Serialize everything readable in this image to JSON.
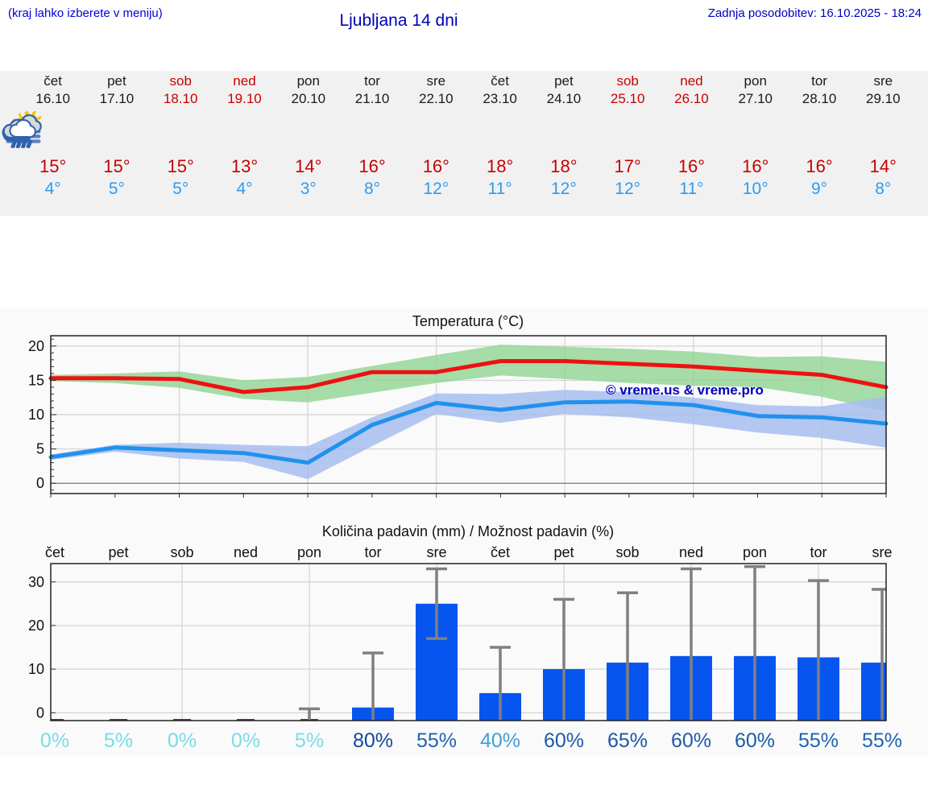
{
  "header": {
    "menu_hint": "(kraj lahko izberete v meniju)",
    "title": "Ljubljana 14 dni",
    "last_update": "Zadnja posodobitev: 16.10.2025 - 18:24"
  },
  "colors": {
    "link_blue": "#0000e0",
    "title_blue": "#0000bb",
    "weekend_red": "#c80000",
    "high_temp_red": "#c80000",
    "low_temp_blue": "#2d9bf0",
    "strip_bg": "#f1f1f1",
    "plot_bg": "#fafafa",
    "grid": "#d8d8d8",
    "bar_blue": "#0655ef",
    "error_gray": "#808080",
    "watermark_blue": "#0000bd"
  },
  "days": [
    {
      "name": "čet",
      "date": "16.10",
      "weekend": false,
      "icon": "sun-fog",
      "high": "15°",
      "low": "4°"
    },
    {
      "name": "pet",
      "date": "17.10",
      "weekend": false,
      "icon": "sun-fog",
      "high": "15°",
      "low": "5°"
    },
    {
      "name": "sob",
      "date": "18.10",
      "weekend": true,
      "icon": "partly-cloudy",
      "high": "15°",
      "low": "5°"
    },
    {
      "name": "ned",
      "date": "19.10",
      "weekend": true,
      "icon": "partly-cloudy",
      "high": "13°",
      "low": "4°"
    },
    {
      "name": "pon",
      "date": "20.10",
      "weekend": false,
      "icon": "partly-cloudy",
      "high": "14°",
      "low": "3°"
    },
    {
      "name": "tor",
      "date": "21.10",
      "weekend": false,
      "icon": "sun-cloud-light-rain",
      "high": "16°",
      "low": "8°"
    },
    {
      "name": "sre",
      "date": "22.10",
      "weekend": false,
      "icon": "sun-cloud-rain",
      "high": "16°",
      "low": "12°"
    },
    {
      "name": "čet",
      "date": "23.10",
      "weekend": false,
      "icon": "sun-cloud-rain",
      "high": "18°",
      "low": "11°"
    },
    {
      "name": "pet",
      "date": "24.10",
      "weekend": false,
      "icon": "cloud-rain",
      "high": "18°",
      "low": "12°"
    },
    {
      "name": "sob",
      "date": "25.10",
      "weekend": true,
      "icon": "cloud-rain",
      "high": "17°",
      "low": "12°"
    },
    {
      "name": "ned",
      "date": "26.10",
      "weekend": true,
      "icon": "cloud-rain",
      "high": "16°",
      "low": "11°"
    },
    {
      "name": "pon",
      "date": "27.10",
      "weekend": false,
      "icon": "cloud-rain",
      "high": "16°",
      "low": "10°"
    },
    {
      "name": "tor",
      "date": "28.10",
      "weekend": false,
      "icon": "cloud-rain",
      "high": "16°",
      "low": "9°"
    },
    {
      "name": "sre",
      "date": "29.10",
      "weekend": false,
      "icon": "cloud-rain",
      "high": "14°",
      "low": "8°"
    }
  ],
  "chart_data": [
    {
      "type": "line",
      "title": "Temperatura (°C)",
      "x": [
        "čet 16.10",
        "pet 17.10",
        "sob 18.10",
        "ned 19.10",
        "pon 20.10",
        "tor 21.10",
        "sre 22.10",
        "čet 23.10",
        "pet 24.10",
        "sob 25.10",
        "ned 26.10",
        "pon 27.10",
        "tor 28.10",
        "sre 29.10"
      ],
      "ylabel": "°C",
      "ylim": [
        -1.5,
        21.5
      ],
      "yticks": [
        0,
        5,
        10,
        15,
        20
      ],
      "grid": true,
      "watermark": "© vreme.us & vreme.pro",
      "series": [
        {
          "name": "max-temperature",
          "color": "#ee1111",
          "values": [
            15.3,
            15.3,
            15.2,
            13.3,
            14.0,
            16.2,
            16.2,
            17.8,
            17.8,
            17.4,
            17.0,
            16.4,
            15.8,
            14.0
          ]
        },
        {
          "name": "min-temperature",
          "color": "#2191ee",
          "values": [
            3.8,
            5.2,
            4.8,
            4.4,
            3.0,
            8.5,
            11.7,
            10.7,
            11.8,
            11.9,
            11.4,
            9.8,
            9.6,
            8.7
          ]
        }
      ],
      "bands": [
        {
          "name": "max-range",
          "color": "#90d494",
          "opacity": 0.8,
          "upper": [
            15.8,
            16.0,
            16.3,
            15.0,
            15.5,
            17.1,
            18.7,
            20.2,
            19.9,
            19.6,
            19.2,
            18.4,
            18.5,
            17.7
          ],
          "lower": [
            14.9,
            14.6,
            13.9,
            12.3,
            11.8,
            13.2,
            14.6,
            15.7,
            15.2,
            14.6,
            14.2,
            14.0,
            12.6,
            10.4
          ]
        },
        {
          "name": "min-range",
          "color": "#a6bdee",
          "opacity": 0.85,
          "upper": [
            4.2,
            5.6,
            5.9,
            5.6,
            5.4,
            9.6,
            13.1,
            13.0,
            13.6,
            13.3,
            12.5,
            11.4,
            11.2,
            12.6
          ],
          "lower": [
            3.4,
            4.6,
            3.6,
            3.1,
            0.6,
            5.4,
            10.1,
            8.8,
            10.1,
            9.6,
            8.6,
            7.4,
            6.6,
            5.2
          ]
        }
      ]
    },
    {
      "type": "bar",
      "title": "Količina padavin (mm) / Možnost padavin (%)",
      "categories": [
        "čet",
        "pet",
        "sob",
        "ned",
        "pon",
        "tor",
        "sre",
        "čet",
        "pet",
        "sob",
        "ned",
        "pon",
        "tor",
        "sre"
      ],
      "values": [
        0,
        0.1,
        0,
        0,
        0.1,
        1.2,
        25,
        4.5,
        10,
        11.5,
        13,
        13,
        12.7,
        11.5
      ],
      "error_high": [
        0,
        0,
        0,
        0,
        0.9,
        13.7,
        33,
        15,
        26,
        27.5,
        33,
        33.5,
        30.3,
        28.3
      ],
      "error_low": [
        0,
        0,
        0,
        0,
        0,
        0,
        17,
        0,
        0,
        0,
        0,
        0,
        0,
        0
      ],
      "probabilities": [
        "0%",
        "5%",
        "0%",
        "0%",
        "5%",
        "80%",
        "55%",
        "40%",
        "60%",
        "65%",
        "60%",
        "60%",
        "55%",
        "55%"
      ],
      "prob_colors": [
        "#79dce9",
        "#79dce9",
        "#79dce9",
        "#79dce9",
        "#79dce9",
        "#14489b",
        "#2063b1",
        "#3fa0d9",
        "#1b5aab",
        "#1957a8",
        "#1b5aab",
        "#1b5aab",
        "#2063b1",
        "#2063b1"
      ],
      "bar_color": "#0655ef",
      "ylim": [
        -1.8,
        34.2
      ],
      "yticks": [
        0,
        10,
        20,
        30
      ],
      "grid": true
    }
  ]
}
